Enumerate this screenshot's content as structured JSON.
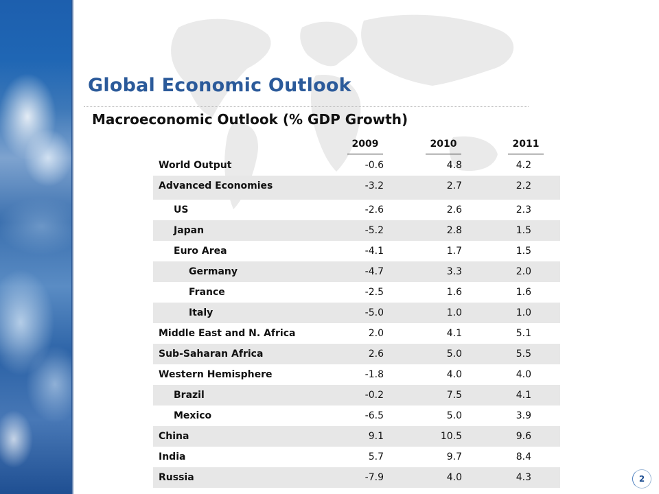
{
  "slide": {
    "title": "Global Economic Outlook",
    "subtitle": "Macroeconomic Outlook (% GDP Growth)",
    "page_number": "2"
  },
  "colors": {
    "title": "#2b5a9a",
    "row_shade": "#e7e7e7",
    "earth_blue": "#1f66b4"
  },
  "table": {
    "years": [
      "2009",
      "2010",
      "2011"
    ],
    "rows": [
      {
        "label": "World Output",
        "indent": 0,
        "shaded": false,
        "values": [
          "-0.6",
          "4.8",
          "4.2"
        ]
      },
      {
        "label": "Advanced Economies",
        "indent": 0,
        "shaded": true,
        "values": [
          "-3.2",
          "2.7",
          "2.2"
        ]
      },
      {
        "label": "US",
        "indent": 1,
        "shaded": false,
        "values": [
          "-2.6",
          "2.6",
          "2.3"
        ]
      },
      {
        "label": "Japan",
        "indent": 1,
        "shaded": true,
        "values": [
          "-5.2",
          "2.8",
          "1.5"
        ]
      },
      {
        "label": "Euro Area",
        "indent": 1,
        "shaded": false,
        "values": [
          "-4.1",
          "1.7",
          "1.5"
        ]
      },
      {
        "label": "Germany",
        "indent": 2,
        "shaded": true,
        "values": [
          "-4.7",
          "3.3",
          "2.0"
        ]
      },
      {
        "label": "France",
        "indent": 2,
        "shaded": false,
        "values": [
          "-2.5",
          "1.6",
          "1.6"
        ]
      },
      {
        "label": "Italy",
        "indent": 2,
        "shaded": true,
        "values": [
          "-5.0",
          "1.0",
          "1.0"
        ]
      },
      {
        "label": "Middle East and N. Africa",
        "indent": 0,
        "shaded": false,
        "values": [
          "2.0",
          "4.1",
          "5.1"
        ]
      },
      {
        "label": "Sub-Saharan Africa",
        "indent": 0,
        "shaded": true,
        "values": [
          "2.6",
          "5.0",
          "5.5"
        ]
      },
      {
        "label": "Western Hemisphere",
        "indent": 0,
        "shaded": false,
        "values": [
          "-1.8",
          "4.0",
          "4.0"
        ]
      },
      {
        "label": "Brazil",
        "indent": 1,
        "shaded": true,
        "values": [
          "-0.2",
          "7.5",
          "4.1"
        ]
      },
      {
        "label": "Mexico",
        "indent": 1,
        "shaded": false,
        "values": [
          "-6.5",
          "5.0",
          "3.9"
        ]
      },
      {
        "label": "China",
        "indent": 0,
        "shaded": true,
        "values": [
          "9.1",
          "10.5",
          "9.6"
        ]
      },
      {
        "label": "India",
        "indent": 0,
        "shaded": false,
        "values": [
          "5.7",
          "9.7",
          "8.4"
        ]
      },
      {
        "label": "Russia",
        "indent": 0,
        "shaded": true,
        "values": [
          "-7.9",
          "4.0",
          "4.3"
        ]
      }
    ]
  }
}
